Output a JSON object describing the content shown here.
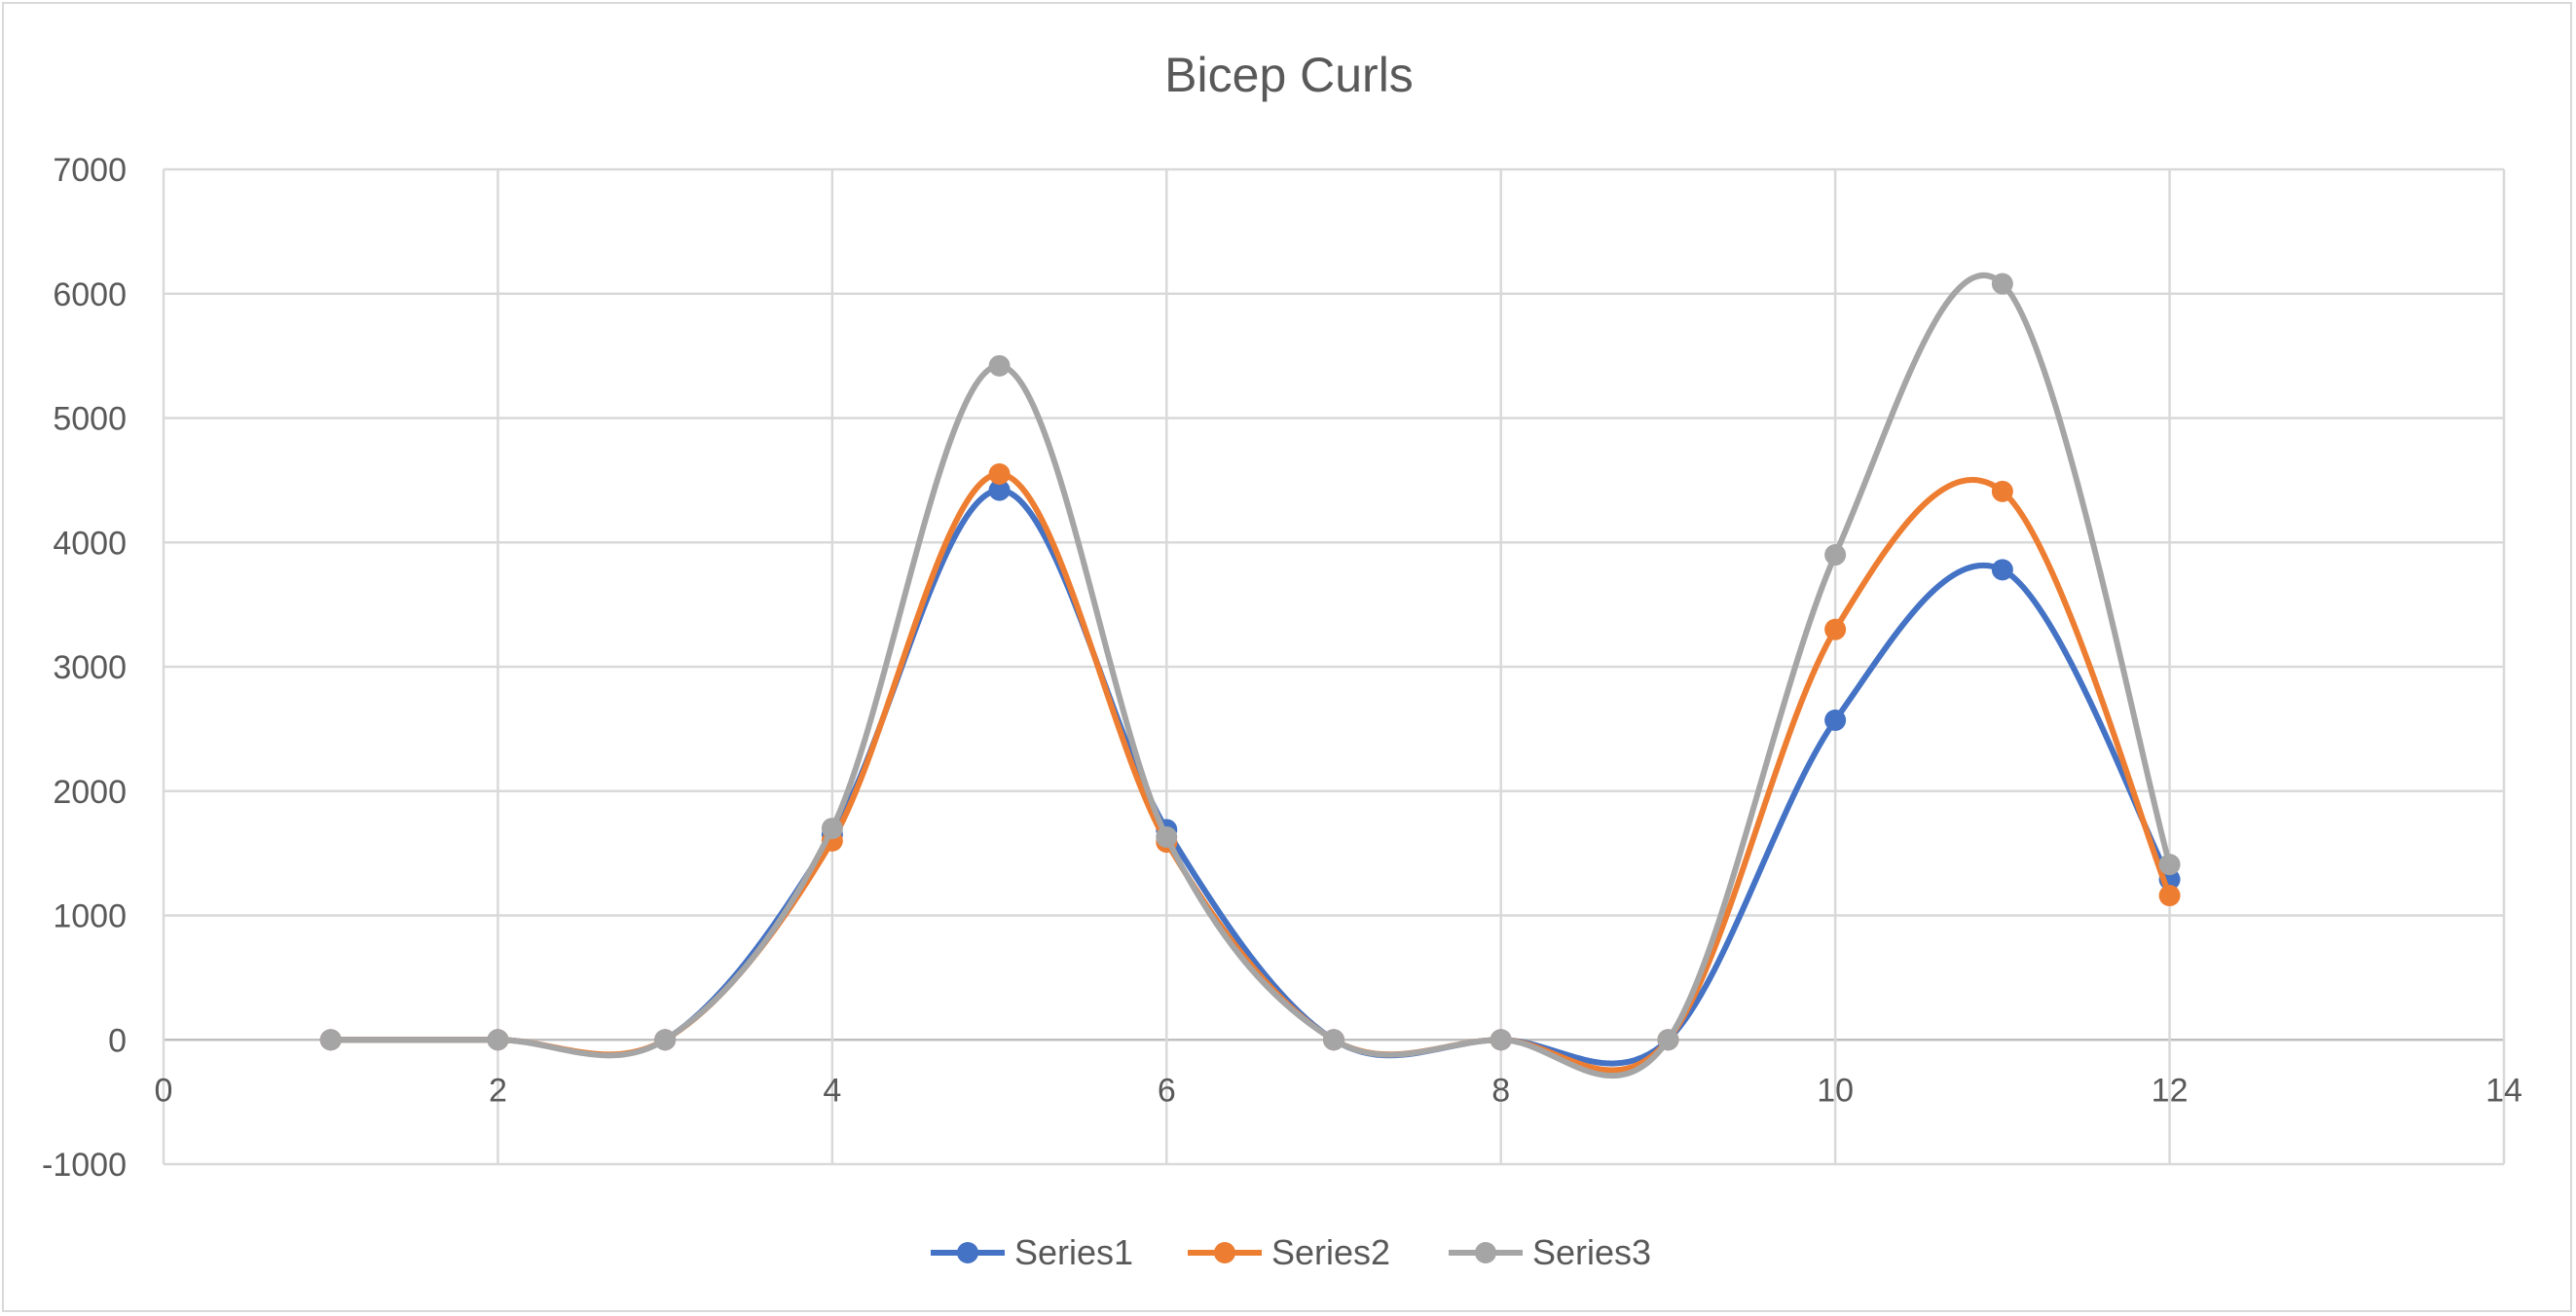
{
  "chart_data": {
    "type": "scatter",
    "title": "Bicep Curls",
    "xlim": [
      0,
      14
    ],
    "ylim": [
      -1000,
      7000
    ],
    "x_ticks": [
      0,
      2,
      4,
      6,
      8,
      10,
      12,
      14
    ],
    "y_ticks": [
      -1000,
      0,
      1000,
      2000,
      3000,
      4000,
      5000,
      6000,
      7000
    ],
    "grid": true,
    "smooth_lines": true,
    "markers": true,
    "legend_position": "bottom",
    "series": [
      {
        "name": "Series1",
        "color": "#4472C4",
        "x": [
          1,
          2,
          3,
          4,
          5,
          6,
          7,
          8,
          9,
          10,
          11,
          12
        ],
        "y": [
          0,
          0,
          0,
          1650,
          4420,
          1690,
          0,
          0,
          0,
          2570,
          3780,
          1290
        ]
      },
      {
        "name": "Series2",
        "color": "#ED7D31",
        "x": [
          1,
          2,
          3,
          4,
          5,
          6,
          7,
          8,
          9,
          10,
          11,
          12
        ],
        "y": [
          0,
          0,
          0,
          1600,
          4550,
          1590,
          0,
          0,
          0,
          3300,
          4410,
          1160
        ]
      },
      {
        "name": "Series3",
        "color": "#A5A5A5",
        "x": [
          1,
          2,
          3,
          4,
          5,
          6,
          7,
          8,
          9,
          10,
          11,
          12
        ],
        "y": [
          0,
          0,
          0,
          1700,
          5420,
          1630,
          0,
          0,
          0,
          3900,
          6080,
          1410
        ]
      }
    ]
  }
}
